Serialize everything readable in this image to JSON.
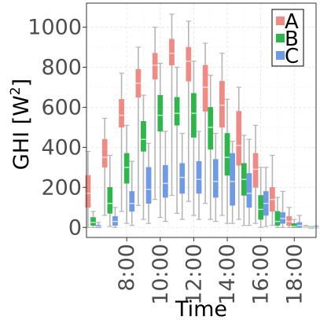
{
  "chart_data": {
    "type": "box",
    "xlabel": "Time",
    "ylabel": "GHI [W",
    "ylabel_sup": "2",
    "ylabel_close": "]",
    "ylim": [
      -50,
      1120
    ],
    "yticks": [
      0,
      200,
      400,
      600,
      800,
      1000
    ],
    "xlim": [
      5.6,
      19.3
    ],
    "xtick_values": [
      8,
      10,
      12,
      14,
      16,
      18
    ],
    "xtick_labels": [
      "8:00",
      "10:00",
      "12:00",
      "14:00",
      "16:00",
      "18:00"
    ],
    "grid": true,
    "legend_position": "top-right",
    "series": [
      {
        "name": "A",
        "color": "#F08A84",
        "x": [
          6,
          7,
          8,
          9,
          10,
          11,
          12,
          13,
          14,
          15,
          16,
          17,
          18,
          19
        ],
        "boxes": [
          {
            "min": 0,
            "q1": 100,
            "median": 170,
            "q3": 260,
            "max": 380
          },
          {
            "min": 60,
            "q1": 300,
            "median": 350,
            "q3": 440,
            "max": 545
          },
          {
            "min": 80,
            "q1": 500,
            "median": 560,
            "q3": 640,
            "max": 770
          },
          {
            "min": 110,
            "q1": 650,
            "median": 720,
            "q3": 790,
            "max": 900
          },
          {
            "min": 140,
            "q1": 740,
            "median": 810,
            "q3": 870,
            "max": 1000
          },
          {
            "min": 160,
            "q1": 810,
            "median": 870,
            "q3": 940,
            "max": 1065
          },
          {
            "min": 130,
            "q1": 730,
            "median": 830,
            "q3": 900,
            "max": 1030
          },
          {
            "min": 120,
            "q1": 580,
            "median": 700,
            "q3": 810,
            "max": 920
          },
          {
            "min": 60,
            "q1": 500,
            "median": 610,
            "q3": 730,
            "max": 870
          },
          {
            "min": 40,
            "q1": 310,
            "median": 410,
            "q3": 580,
            "max": 700
          },
          {
            "min": 20,
            "q1": 200,
            "median": 290,
            "q3": 370,
            "max": 510
          },
          {
            "min": 10,
            "q1": 80,
            "median": 140,
            "q3": 200,
            "max": 360
          },
          {
            "min": 0,
            "q1": 10,
            "median": 30,
            "q3": 55,
            "max": 100
          },
          {
            "min": 0,
            "q1": 0,
            "median": 2,
            "q3": 5,
            "max": 10
          }
        ]
      },
      {
        "name": "B",
        "color": "#2DB74B",
        "x": [
          6,
          7,
          8,
          9,
          10,
          11,
          12,
          13,
          14,
          15,
          16,
          17,
          18,
          19
        ],
        "boxes": [
          {
            "min": 0,
            "q1": 10,
            "median": 25,
            "q3": 50,
            "max": 80
          },
          {
            "min": 5,
            "q1": 70,
            "median": 120,
            "q3": 200,
            "max": 360
          },
          {
            "min": 20,
            "q1": 220,
            "median": 300,
            "q3": 370,
            "max": 510
          },
          {
            "min": 40,
            "q1": 380,
            "median": 440,
            "q3": 530,
            "max": 660
          },
          {
            "min": 50,
            "q1": 480,
            "median": 560,
            "q3": 660,
            "max": 820
          },
          {
            "min": 70,
            "q1": 510,
            "median": 570,
            "q3": 650,
            "max": 800
          },
          {
            "min": 60,
            "q1": 450,
            "median": 570,
            "q3": 670,
            "max": 830
          },
          {
            "min": 40,
            "q1": 390,
            "median": 500,
            "q3": 600,
            "max": 760
          },
          {
            "min": 20,
            "q1": 260,
            "median": 350,
            "q3": 470,
            "max": 640
          },
          {
            "min": 10,
            "q1": 160,
            "median": 240,
            "q3": 320,
            "max": 460
          },
          {
            "min": 0,
            "q1": 40,
            "median": 90,
            "q3": 160,
            "max": 300
          },
          {
            "min": 0,
            "q1": 10,
            "median": 30,
            "q3": 80,
            "max": 150
          },
          {
            "min": 0,
            "q1": 0,
            "median": 5,
            "q3": 20,
            "max": 40
          },
          {
            "min": 0,
            "q1": 0,
            "median": 0,
            "q3": 2,
            "max": 5
          }
        ]
      },
      {
        "name": "C",
        "color": "#6E9AE8",
        "x": [
          6,
          7,
          8,
          9,
          10,
          11,
          12,
          13,
          14,
          15,
          16,
          17,
          18,
          19
        ],
        "boxes": [
          {
            "min": 0,
            "q1": 0,
            "median": 5,
            "q3": 12,
            "max": 25
          },
          {
            "min": 0,
            "q1": 10,
            "median": 30,
            "q3": 55,
            "max": 100
          },
          {
            "min": 10,
            "q1": 80,
            "median": 120,
            "q3": 180,
            "max": 330
          },
          {
            "min": 20,
            "q1": 120,
            "median": 190,
            "q3": 300,
            "max": 420
          },
          {
            "min": 30,
            "q1": 150,
            "median": 220,
            "q3": 310,
            "max": 480
          },
          {
            "min": 40,
            "q1": 170,
            "median": 250,
            "q3": 320,
            "max": 470
          },
          {
            "min": 40,
            "q1": 170,
            "median": 240,
            "q3": 330,
            "max": 480
          },
          {
            "min": 30,
            "q1": 150,
            "median": 230,
            "q3": 340,
            "max": 470
          },
          {
            "min": 20,
            "q1": 110,
            "median": 230,
            "q3": 370,
            "max": 430
          },
          {
            "min": 10,
            "q1": 100,
            "median": 170,
            "q3": 270,
            "max": 440
          },
          {
            "min": 5,
            "q1": 60,
            "median": 120,
            "q3": 180,
            "max": 300
          },
          {
            "min": 0,
            "q1": 20,
            "median": 45,
            "q3": 75,
            "max": 180
          },
          {
            "min": 0,
            "q1": 0,
            "median": 10,
            "q3": 25,
            "max": 60
          },
          {
            "min": 0,
            "q1": 0,
            "median": 0,
            "q3": 3,
            "max": 8
          }
        ]
      }
    ]
  }
}
